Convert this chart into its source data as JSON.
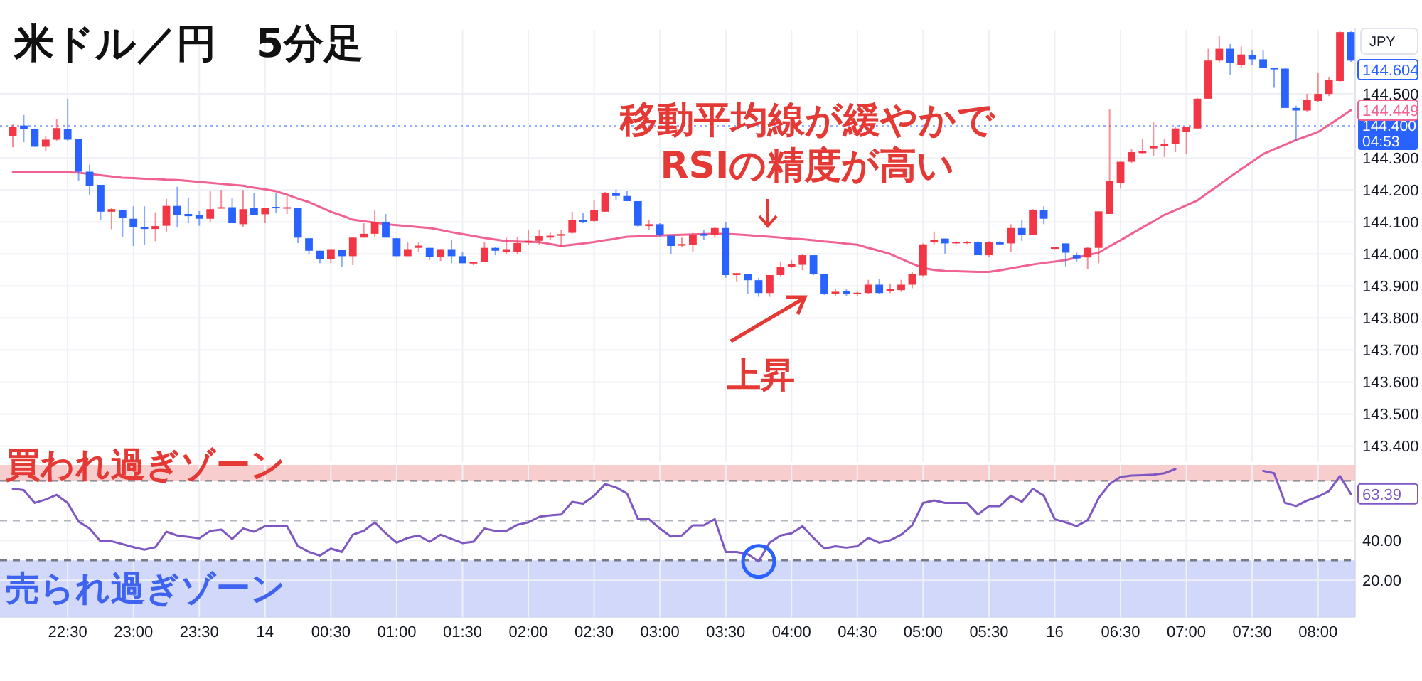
{
  "chart_data": [
    {
      "type": "candlestick",
      "title": "米ドル／円　5分足",
      "categories": [
        null,
        null,
        null,
        null,
        null,
        null,
        null,
        null,
        null,
        null,
        null,
        null,
        null,
        null,
        null,
        null,
        null,
        null,
        null,
        null,
        null,
        null,
        null,
        null,
        null,
        null,
        null,
        null,
        null,
        null,
        null,
        null,
        null,
        null,
        null,
        null,
        null,
        null,
        null,
        null,
        null,
        null,
        null,
        null,
        null,
        null,
        null,
        null,
        null,
        null,
        null,
        null,
        null,
        null,
        null,
        null,
        null,
        null,
        null,
        null,
        null,
        null,
        null,
        null,
        null,
        null,
        null,
        null,
        null,
        null,
        null,
        null,
        null,
        null,
        null,
        null,
        null,
        null,
        null,
        null,
        null,
        null,
        null,
        null,
        null,
        null,
        null,
        null,
        null,
        null,
        null,
        null,
        null,
        null,
        null,
        null,
        null,
        null,
        null,
        null,
        null,
        null,
        null,
        null,
        null,
        null,
        null,
        null,
        null,
        null,
        null,
        null,
        null,
        null,
        null,
        null,
        null,
        null,
        null,
        null,
        null,
        null,
        null
      ],
      "ohlc": [
        [
          144.368,
          144.404,
          144.333,
          144.397
        ],
        [
          144.401,
          144.434,
          144.349,
          144.39
        ],
        [
          144.39,
          144.392,
          144.335,
          144.335
        ],
        [
          144.335,
          144.368,
          144.32,
          144.357
        ],
        [
          144.357,
          144.422,
          144.353,
          144.393
        ],
        [
          144.39,
          144.485,
          144.353,
          144.357
        ],
        [
          144.36,
          144.36,
          144.228,
          144.257
        ],
        [
          144.257,
          144.279,
          144.184,
          144.213
        ],
        [
          144.216,
          144.216,
          144.107,
          144.132
        ],
        [
          144.132,
          144.143,
          144.077,
          144.14
        ],
        [
          144.137,
          144.137,
          144.054,
          144.113
        ],
        [
          144.11,
          144.149,
          144.025,
          144.084
        ],
        [
          144.085,
          144.149,
          144.029,
          144.078
        ],
        [
          144.078,
          144.13,
          144.04,
          144.087
        ],
        [
          144.088,
          144.172,
          144.069,
          144.15
        ],
        [
          144.15,
          144.21,
          144.084,
          144.122
        ],
        [
          144.125,
          144.176,
          144.096,
          144.118
        ],
        [
          144.122,
          144.134,
          144.088,
          144.11
        ],
        [
          144.11,
          144.196,
          144.099,
          144.14
        ],
        [
          144.143,
          144.2,
          144.143,
          144.146
        ],
        [
          144.146,
          144.176,
          144.096,
          144.096
        ],
        [
          144.093,
          144.2,
          144.084,
          144.14
        ],
        [
          144.143,
          144.191,
          144.122,
          144.122
        ],
        [
          144.124,
          144.144,
          144.096,
          144.144
        ],
        [
          144.147,
          144.191,
          144.128,
          144.143
        ],
        [
          144.143,
          144.181,
          144.125,
          144.146
        ],
        [
          144.143,
          144.143,
          144.034,
          144.051
        ],
        [
          144.049,
          144.049,
          144.0,
          144.01
        ],
        [
          144.01,
          144.01,
          143.971,
          143.985
        ],
        [
          143.985,
          144.015,
          143.971,
          144.015
        ],
        [
          144.012,
          144.012,
          143.96,
          143.993
        ],
        [
          143.993,
          144.051,
          143.965,
          144.051
        ],
        [
          144.051,
          144.096,
          144.051,
          144.063
        ],
        [
          144.063,
          144.137,
          144.054,
          144.099
        ],
        [
          144.099,
          144.125,
          144.051,
          144.051
        ],
        [
          144.049,
          144.049,
          143.993,
          143.993
        ],
        [
          143.993,
          144.037,
          143.993,
          144.015
        ],
        [
          144.019,
          144.037,
          144.007,
          144.026
        ],
        [
          144.019,
          144.019,
          143.981,
          143.99
        ],
        [
          143.99,
          144.015,
          143.978,
          144.015
        ],
        [
          144.015,
          144.044,
          143.971,
          143.993
        ],
        [
          143.993,
          144.007,
          143.971,
          143.971
        ],
        [
          143.97,
          143.975,
          143.965,
          143.975
        ],
        [
          143.975,
          144.037,
          143.975,
          144.019
        ],
        [
          144.019,
          144.022,
          143.996,
          144.01
        ],
        [
          144.007,
          144.051,
          143.999,
          144.015
        ],
        [
          144.007,
          144.054,
          143.999,
          144.034
        ],
        [
          144.037,
          144.074,
          144.029,
          144.041
        ],
        [
          144.041,
          144.074,
          144.029,
          144.056
        ],
        [
          144.051,
          144.066,
          144.044,
          144.057
        ],
        [
          144.057,
          144.074,
          144.022,
          144.062
        ],
        [
          144.066,
          144.132,
          144.063,
          144.106
        ],
        [
          144.107,
          144.128,
          144.096,
          144.1
        ],
        [
          144.103,
          144.169,
          144.099,
          144.137
        ],
        [
          144.132,
          144.194,
          144.132,
          144.191
        ],
        [
          144.191,
          144.201,
          144.169,
          144.181
        ],
        [
          144.181,
          144.196,
          144.165,
          144.165
        ],
        [
          144.165,
          144.165,
          144.085,
          144.088
        ],
        [
          144.087,
          144.107,
          144.074,
          144.093
        ],
        [
          144.093,
          144.096,
          144.054,
          144.059
        ],
        [
          144.057,
          144.057,
          144.0,
          144.025
        ],
        [
          144.026,
          144.051,
          144.022,
          144.031
        ],
        [
          144.029,
          144.066,
          144.007,
          144.059
        ],
        [
          144.063,
          144.074,
          144.044,
          144.057
        ],
        [
          144.059,
          144.084,
          144.051,
          144.081
        ],
        [
          144.081,
          144.099,
          143.926,
          143.934
        ],
        [
          143.934,
          143.941,
          143.912,
          143.94
        ],
        [
          143.937,
          143.937,
          143.875,
          143.918
        ],
        [
          143.918,
          143.925,
          143.866,
          143.878
        ],
        [
          143.878,
          143.934,
          143.866,
          143.934
        ],
        [
          143.934,
          143.975,
          143.93,
          143.96
        ],
        [
          143.96,
          143.981,
          143.956,
          143.968
        ],
        [
          143.966,
          144.0,
          143.949,
          143.996
        ],
        [
          143.996,
          143.996,
          143.934,
          143.937
        ],
        [
          143.937,
          143.937,
          143.872,
          143.875
        ],
        [
          143.875,
          143.89,
          143.868,
          143.882
        ],
        [
          143.883,
          143.89,
          143.868,
          143.875
        ],
        [
          143.875,
          143.882,
          143.868,
          143.879
        ],
        [
          143.878,
          143.919,
          143.875,
          143.904
        ],
        [
          143.904,
          143.922,
          143.875,
          143.878
        ],
        [
          143.884,
          143.907,
          143.878,
          143.89
        ],
        [
          143.887,
          143.919,
          143.881,
          143.904
        ],
        [
          143.904,
          143.944,
          143.893,
          143.937
        ],
        [
          143.933,
          144.033,
          143.93,
          144.03
        ],
        [
          144.036,
          144.07,
          144.03,
          144.045
        ],
        [
          144.048,
          144.048,
          144.001,
          144.033
        ],
        [
          144.033,
          144.04,
          144.03,
          144.038
        ],
        [
          144.034,
          144.04,
          144.031,
          144.038
        ],
        [
          144.036,
          144.04,
          143.996,
          143.996
        ],
        [
          143.996,
          144.04,
          143.99,
          144.036
        ],
        [
          144.036,
          144.04,
          144.03,
          144.03
        ],
        [
          144.033,
          144.093,
          144.007,
          144.081
        ],
        [
          144.081,
          144.107,
          144.041,
          144.06
        ],
        [
          144.06,
          144.14,
          144.06,
          144.137
        ],
        [
          144.137,
          144.149,
          144.093,
          144.11
        ],
        [
          144.016,
          144.022,
          144.015,
          144.021
        ],
        [
          144.033,
          144.033,
          143.959,
          144.004
        ],
        [
          143.996,
          144.004,
          143.977,
          143.986
        ],
        [
          143.989,
          144.022,
          143.952,
          144.019
        ],
        [
          144.019,
          144.133,
          143.971,
          144.133
        ],
        [
          144.125,
          144.451,
          144.125,
          144.229
        ],
        [
          144.221,
          144.288,
          144.204,
          144.288
        ],
        [
          144.288,
          144.327,
          144.285,
          144.318
        ],
        [
          144.315,
          144.359,
          144.312,
          144.322
        ],
        [
          144.33,
          144.411,
          144.307,
          144.336
        ],
        [
          144.337,
          144.359,
          144.303,
          144.344
        ],
        [
          144.344,
          144.396,
          144.318,
          144.392
        ],
        [
          144.381,
          144.396,
          144.312,
          144.396
        ],
        [
          144.392,
          144.487,
          144.39,
          144.485
        ],
        [
          144.485,
          144.641,
          144.485,
          144.604
        ],
        [
          144.604,
          144.682,
          144.599,
          144.641
        ],
        [
          144.641,
          144.656,
          144.559,
          144.596
        ],
        [
          144.589,
          144.648,
          144.581,
          144.623
        ],
        [
          144.621,
          144.636,
          144.589,
          144.608
        ],
        [
          144.608,
          144.636,
          144.581,
          144.581
        ],
        [
          144.581,
          144.581,
          144.519,
          144.577
        ],
        [
          144.579,
          144.579,
          144.456,
          144.456
        ],
        [
          144.456,
          144.463,
          144.352,
          144.448
        ],
        [
          144.448,
          144.5,
          144.445,
          144.481
        ],
        [
          144.478,
          144.567,
          144.475,
          144.5
        ],
        [
          144.5,
          144.552,
          144.493,
          144.544
        ],
        [
          144.54,
          144.697,
          144.537,
          144.693
        ],
        [
          144.693,
          144.695,
          144.6,
          144.604
        ]
      ],
      "colors": [
        "#f23645",
        "#2962ff",
        "#2962ff",
        "#f23645",
        "#f23645",
        "#2962ff",
        "#2962ff",
        "#2962ff",
        "#2962ff",
        "#f23645",
        "#2962ff",
        "#2962ff",
        "#2962ff",
        "#f23645",
        "#f23645",
        "#2962ff",
        "#2962ff",
        "#2962ff",
        "#f23645",
        "#f23645",
        "#2962ff",
        "#f23645",
        "#2962ff",
        "#f23645",
        "#2962ff",
        "#f23645",
        "#2962ff",
        "#2962ff",
        "#2962ff",
        "#f23645",
        "#2962ff",
        "#f23645",
        "#f23645",
        "#f23645",
        "#2962ff",
        "#2962ff",
        "#f23645",
        "#f23645",
        "#2962ff",
        "#f23645",
        "#2962ff",
        "#2962ff",
        "#f23645",
        "#f23645",
        "#2962ff",
        "#f23645",
        "#f23645",
        "#f23645",
        "#f23645",
        "#f23645",
        "#f23645",
        "#f23645",
        "#2962ff",
        "#f23645",
        "#f23645",
        "#2962ff",
        "#2962ff",
        "#2962ff",
        "#f23645",
        "#2962ff",
        "#2962ff",
        "#f23645",
        "#f23645",
        "#2962ff",
        "#f23645",
        "#2962ff",
        "#f23645",
        "#2962ff",
        "#2962ff",
        "#f23645",
        "#f23645",
        "#f23645",
        "#f23645",
        "#2962ff",
        "#2962ff",
        "#f23645",
        "#2962ff",
        "#f23645",
        "#f23645",
        "#2962ff",
        "#f23645",
        "#f23645",
        "#f23645",
        "#f23645",
        "#f23645",
        "#2962ff",
        "#f23645",
        "#f23645",
        "#2962ff",
        "#f23645",
        "#2962ff",
        "#f23645",
        "#2962ff",
        "#f23645",
        "#2962ff",
        "#f23645",
        "#2962ff",
        "#2962ff",
        "#f23645",
        "#f23645",
        "#f23645",
        "#f23645",
        "#f23645",
        "#f23645",
        "#f23645",
        "#f23645",
        "#f23645",
        "#f23645",
        "#f23645",
        "#f23645",
        "#f23645",
        "#2962ff",
        "#f23645",
        "#2962ff",
        "#2962ff",
        "#2962ff",
        "#2962ff",
        "#2962ff",
        "#f23645",
        "#f23645",
        "#f23645",
        "#f23645",
        "#2962ff"
      ],
      "series": [
        {
          "type": "line",
          "color": "#f06292",
          "values": [
            144.257,
            144.257,
            144.256,
            144.256,
            144.255,
            144.255,
            144.254,
            144.25,
            144.246,
            144.242,
            144.238,
            144.237,
            144.235,
            144.234,
            144.232,
            144.231,
            144.228,
            144.225,
            144.222,
            144.219,
            144.216,
            144.213,
            144.207,
            144.202,
            144.196,
            144.185,
            144.173,
            144.162,
            144.147,
            144.132,
            144.12,
            144.107,
            144.102,
            144.098,
            144.093,
            144.09,
            144.087,
            144.084,
            144.081,
            144.075,
            144.068,
            144.062,
            144.056,
            144.05,
            144.045,
            144.04,
            144.039,
            144.038,
            144.037,
            144.031,
            144.025,
            144.029,
            144.033,
            144.037,
            144.043,
            144.048,
            144.054,
            144.055,
            144.056,
            144.058,
            144.059,
            144.06,
            144.061,
            144.062,
            144.063,
            144.063,
            144.061,
            144.059,
            144.056,
            144.054,
            144.051,
            144.048,
            144.046,
            144.043,
            144.039,
            144.036,
            144.032,
            144.029,
            144.019,
            144.01,
            144.0,
            143.985,
            143.97,
            143.956,
            143.95,
            143.947,
            143.946,
            143.945,
            143.944,
            143.944,
            143.949,
            143.955,
            143.961,
            143.967,
            143.972,
            143.976,
            143.981,
            143.989,
            143.996,
            144.004,
            144.024,
            144.043,
            144.063,
            144.083,
            144.102,
            144.122,
            144.137,
            144.152,
            144.167,
            144.192,
            144.216,
            144.241,
            144.265,
            144.288,
            144.312,
            144.327,
            144.341,
            144.356,
            144.368,
            144.381,
            144.403,
            144.426,
            144.449
          ]
        }
      ],
      "ylim": [
        143.35,
        144.7
      ],
      "yticks": [
        {
          "value": 143.4,
          "label": "143.400"
        },
        {
          "value": 143.5,
          "label": "143.500"
        },
        {
          "value": 143.6,
          "label": "143.600"
        },
        {
          "value": 143.7,
          "label": "143.700"
        },
        {
          "value": 143.8,
          "label": "143.800"
        },
        {
          "value": 143.9,
          "label": "143.900"
        },
        {
          "value": 144.0,
          "label": "144.000"
        },
        {
          "value": 144.1,
          "label": "144.100"
        },
        {
          "value": 144.2,
          "label": "144.200"
        },
        {
          "value": 144.3,
          "label": "144.300"
        },
        {
          "value": 144.5,
          "label": "144.500"
        }
      ],
      "grid": true,
      "tick_labels": "y",
      "ref_lines": [
        {
          "axis": "y",
          "value": 144.4,
          "label": "144.400",
          "color": "#2962ff",
          "line_style": "dotted"
        }
      ],
      "annotations": [
        "移動平均線が緩やかで\nRSIの精度が高い",
        "上昇",
        "JPY",
        "144.449",
        "144.604",
        "04:53"
      ]
    },
    {
      "type": "line",
      "categories": [
        null,
        null,
        null,
        null,
        null,
        "22:30",
        null,
        null,
        null,
        null,
        null,
        "23:00",
        null,
        null,
        null,
        null,
        null,
        "23:30",
        null,
        null,
        null,
        null,
        null,
        "14",
        null,
        null,
        null,
        null,
        null,
        "00:30",
        null,
        null,
        null,
        null,
        null,
        "01:00",
        null,
        null,
        null,
        null,
        null,
        "01:30",
        null,
        null,
        null,
        null,
        null,
        "02:00",
        null,
        null,
        null,
        null,
        null,
        "02:30",
        null,
        null,
        null,
        null,
        null,
        "03:00",
        null,
        null,
        null,
        null,
        null,
        "03:30",
        null,
        null,
        null,
        null,
        null,
        "04:00",
        null,
        null,
        null,
        null,
        null,
        "04:30",
        null,
        null,
        null,
        null,
        null,
        "05:00",
        null,
        null,
        null,
        null,
        null,
        "05:30",
        null,
        null,
        null,
        null,
        null,
        "16",
        null,
        null,
        null,
        null,
        null,
        "06:30",
        null,
        null,
        null,
        null,
        null,
        "07:00",
        null,
        null,
        null,
        null,
        null,
        "07:30",
        null,
        null,
        null,
        null,
        null,
        "08:00",
        null,
        null,
        null
      ],
      "series": [
        {
          "color": "#7e57c2",
          "values": [
            66,
            65.3,
            58.9,
            60.6,
            62.9,
            58.9,
            49.5,
            46,
            39.6,
            39.6,
            38.2,
            36.6,
            35.4,
            36.6,
            44.4,
            42.5,
            41.8,
            41.1,
            44.8,
            45.5,
            40.8,
            46,
            44.4,
            47.2,
            47.2,
            47.2,
            37.1,
            34.2,
            32.4,
            35.9,
            34.2,
            42.9,
            44.8,
            49.1,
            43.6,
            38.9,
            41.3,
            42.5,
            39.4,
            42.9,
            40.8,
            38.7,
            39.4,
            46,
            44.8,
            44.8,
            47.9,
            49.1,
            51.9,
            52.6,
            53.1,
            59.4,
            58.5,
            62.5,
            68.4,
            66.7,
            63.6,
            50.7,
            50.7,
            46,
            42,
            42.5,
            47.6,
            47.6,
            50.7,
            34.2,
            34.2,
            33.1,
            29.5,
            38.9,
            42.5,
            43.6,
            47.2,
            41.3,
            35.9,
            37.1,
            36.4,
            37.1,
            41.3,
            38.9,
            40.1,
            42.9,
            47.6,
            58.9,
            60.1,
            58.9,
            58.9,
            58.9,
            53.1,
            57.3,
            57.3,
            62.5,
            59.4,
            66,
            62.5,
            50.7,
            49.1,
            47.2,
            50.2,
            61.3,
            68.4,
            71.9,
            72.6,
            72.8,
            73.1,
            73.8,
            75.9,
            null,
            null,
            null,
            null,
            null,
            null,
            null,
            75,
            73.8,
            58.9,
            57.3,
            60.1,
            62,
            64.8,
            72.4,
            63.39
          ]
        }
      ],
      "ylim": [
        1.5,
        78
      ],
      "yticks": [
        {
          "value": 20,
          "label": "20.00"
        },
        {
          "value": 40,
          "label": "40.00"
        }
      ],
      "grid": true,
      "ref_lines": [
        {
          "axis": "y",
          "value": 70,
          "color": "#787b86",
          "line_style": "dashed"
        },
        {
          "axis": "y",
          "value": 50,
          "color": "#b2b5be",
          "line_style": "dashed"
        },
        {
          "axis": "y",
          "value": 30,
          "color": "#787b86",
          "line_style": "dashed"
        }
      ],
      "bands": [
        {
          "axis": "y",
          "from": 70,
          "to": 78,
          "label": "買われ過ぎゾーン",
          "color": "#f6c4c6"
        },
        {
          "axis": "y",
          "from": 1.5,
          "to": 30,
          "label": "売られ過ぎゾーン",
          "color": "#c9d1f8"
        }
      ],
      "annotations": [
        "63.39"
      ]
    }
  ]
}
